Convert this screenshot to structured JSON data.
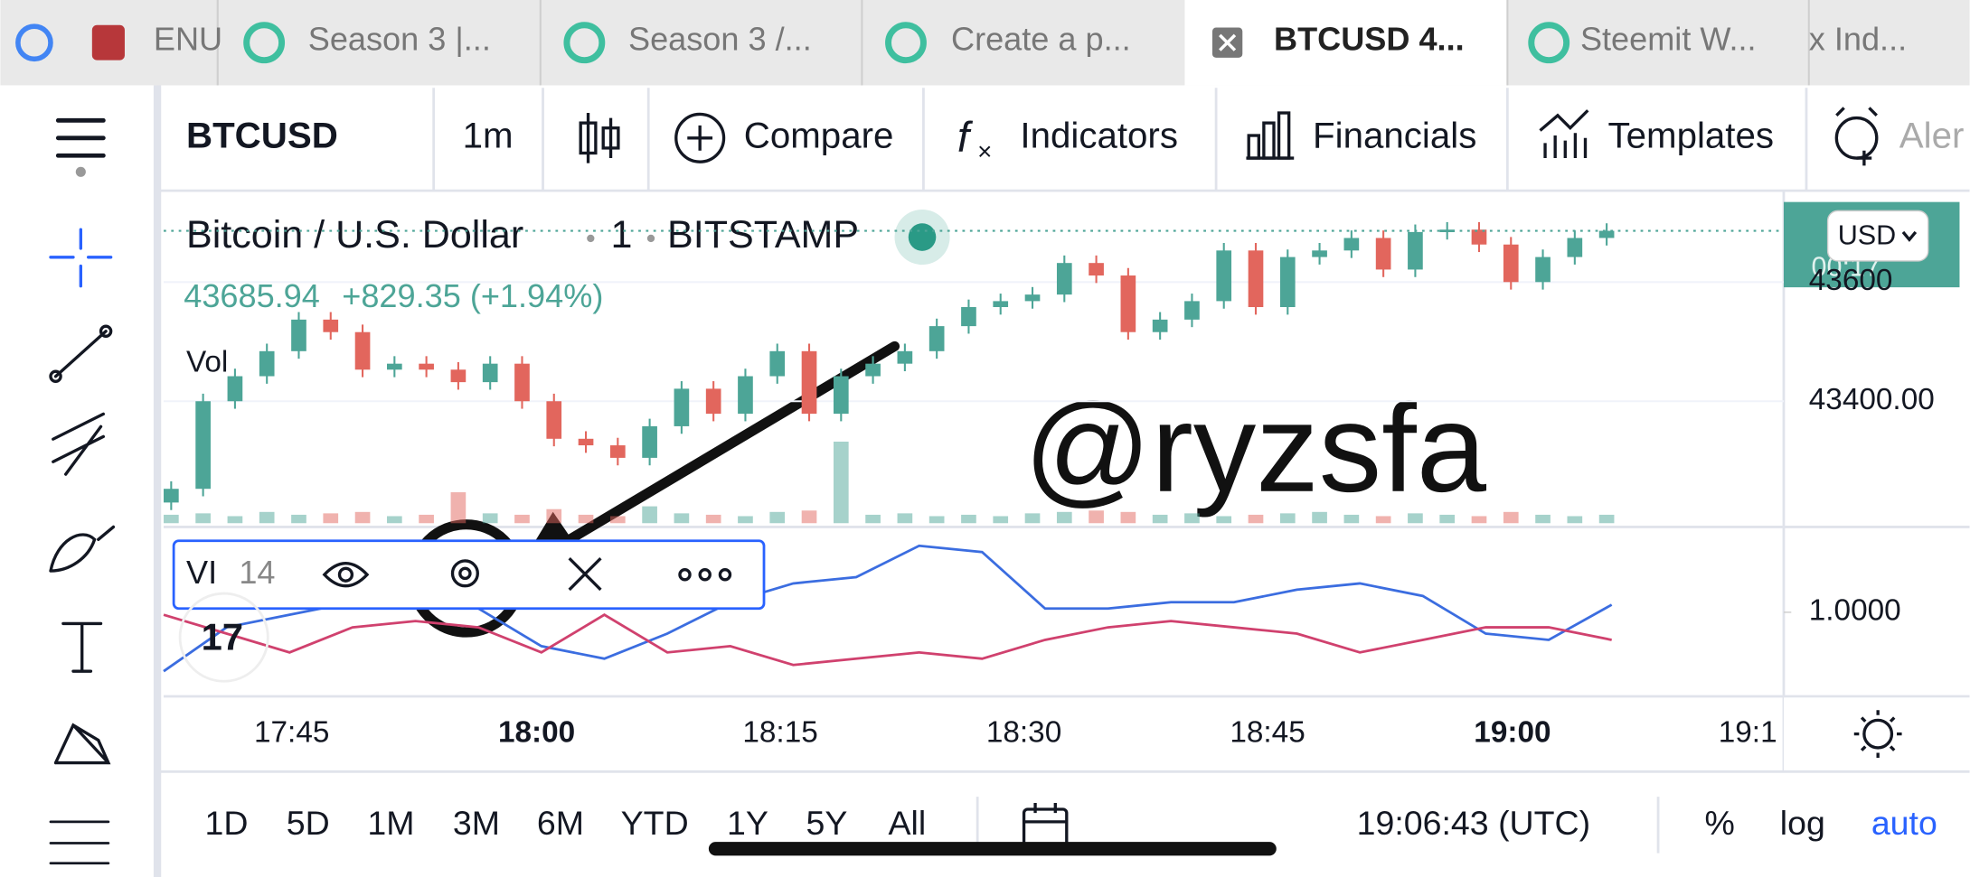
{
  "tabs": [
    "ENU",
    "Season 3 |...",
    "Season 3 /...",
    "Create a p...",
    "BTCUSD 4...",
    "Steemit W...",
    "x Ind..."
  ],
  "toolbar": {
    "symbol": "BTCUSD",
    "interval": "1m",
    "buttons": [
      "Compare",
      "Indicators",
      "Financials",
      "Templates",
      "Aler"
    ]
  },
  "legend": {
    "name": "Bitcoin / U.S. Dollar",
    "interval": "1",
    "exchange": "BITSTAMP",
    "last": "43685.94",
    "change": "+829.35 (+1.94%)",
    "volume": "Vol"
  },
  "indicator": {
    "name": "VI",
    "length": "14"
  },
  "currency": "USD",
  "price_tag_time": "00:17",
  "annotation": "@ryzsfa",
  "time_labels": [
    "17:45",
    "18:00",
    "18:15",
    "18:30",
    "18:45",
    "19:00",
    "19:1"
  ],
  "ranges": [
    "1D",
    "5D",
    "1M",
    "3M",
    "6M",
    "YTD",
    "1Y",
    "5Y",
    "All"
  ],
  "clock": "19:06:43 (UTC)",
  "scale_buttons": [
    "%",
    "log",
    "auto"
  ],
  "chart_data": [
    {
      "type": "candlestick",
      "open": [
        43230,
        43253,
        43400,
        43442,
        43484,
        43537,
        43516,
        43453,
        43463,
        43453,
        43432,
        43463,
        43400,
        43337,
        43326,
        43305,
        43358,
        43421,
        43379,
        43442,
        43484,
        43379,
        43442,
        43463,
        43484,
        43526,
        43558,
        43568,
        43579,
        43632,
        43611,
        43516,
        43537,
        43568,
        43653,
        43558,
        43642,
        43653,
        43674,
        43621,
        43684,
        43688,
        43663,
        43600,
        43642,
        43674
      ],
      "close": [
        43253,
        43400,
        43442,
        43484,
        43537,
        43516,
        43453,
        43463,
        43453,
        43432,
        43463,
        43400,
        43337,
        43326,
        43305,
        43358,
        43421,
        43379,
        43442,
        43484,
        43379,
        43442,
        43463,
        43484,
        43526,
        43558,
        43568,
        43579,
        43632,
        43611,
        43516,
        43537,
        43568,
        43653,
        43558,
        43642,
        43653,
        43674,
        43621,
        43684,
        43688,
        43663,
        43600,
        43642,
        43674,
        43686
      ],
      "volumes": [
        6,
        7,
        5,
        8,
        6,
        7,
        8,
        5,
        6,
        22,
        7,
        6,
        10,
        6,
        5,
        12,
        7,
        6,
        5,
        8,
        9,
        58,
        6,
        7,
        5,
        6,
        5,
        7,
        8,
        9,
        8,
        6,
        7,
        5,
        6,
        7,
        8,
        6,
        5,
        7,
        6,
        5,
        8,
        6,
        5,
        6
      ],
      "up_color": "#4da597",
      "down_color": "#e2665d",
      "ylim": [
        43189,
        43747
      ],
      "yticks": [
        {
          "value": 43400,
          "label": "43400.00"
        },
        43600
      ],
      "grid": true
    },
    {
      "type": "line",
      "series": [
        {
          "name": "VI+",
          "color": "#3b6de0",
          "values": [
            0.812,
            0.952,
            0.992,
            1.032,
            1.052,
            1.012,
            0.892,
            0.852,
            0.932,
            1.032,
            1.092,
            1.112,
            1.212,
            1.192,
            1.012,
            1.012,
            1.032,
            1.032,
            1.072,
            1.092,
            1.052,
            0.932,
            0.912,
            1.024
          ]
        },
        {
          "name": "VI-",
          "color": "#d0416e",
          "values": [
            0.992,
            0.932,
            0.872,
            0.952,
            0.972,
            0.952,
            0.872,
            0.992,
            0.872,
            0.892,
            0.832,
            0.852,
            0.872,
            0.852,
            0.912,
            0.952,
            0.972,
            0.952,
            0.932,
            0.872,
            0.912,
            0.952,
            0.952,
            0.912
          ]
        }
      ],
      "ylim": [
        0.732,
        1.264
      ],
      "yticks": [
        {
          "value": 1,
          "label": "1.0000"
        }
      ]
    }
  ]
}
